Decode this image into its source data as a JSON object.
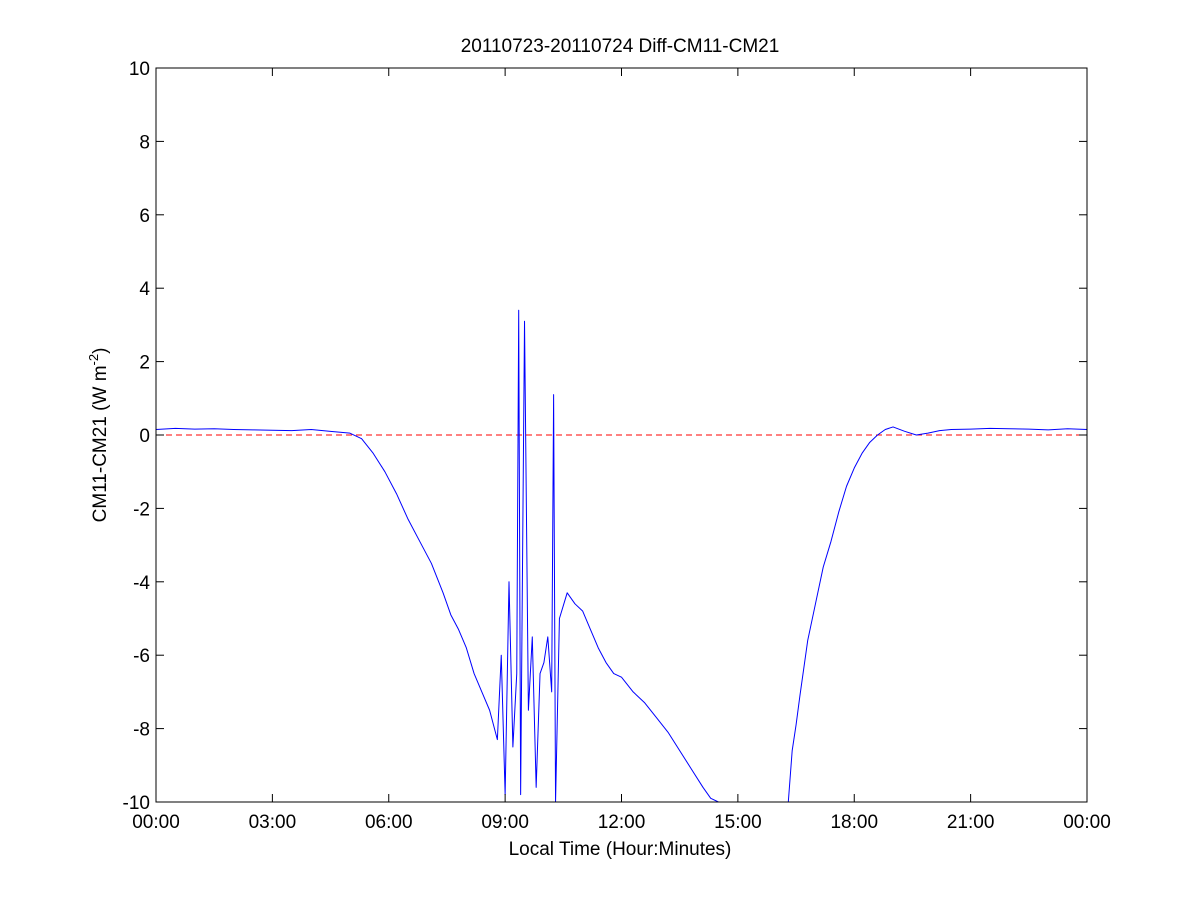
{
  "chart_data": {
    "type": "line",
    "title": "20110723-20110724 Diff-CM11-CM21",
    "xlabel": "Local Time (Hour:Minutes)",
    "ylabel_main": "CM11-CM21 (W m",
    "ylabel_sup": "-2",
    "ylabel_close": ")",
    "x_unit": "hours since 00:00 local time",
    "xlim": [
      0,
      24
    ],
    "ylim": [
      -10,
      10
    ],
    "xticks": [
      0,
      3,
      6,
      9,
      12,
      15,
      18,
      21,
      24
    ],
    "xtick_labels": [
      "00:00",
      "03:00",
      "06:00",
      "09:00",
      "12:00",
      "15:00",
      "18:00",
      "21:00",
      "00:00"
    ],
    "yticks": [
      -10,
      -8,
      -6,
      -4,
      -2,
      0,
      2,
      4,
      6,
      8,
      10
    ],
    "ytick_labels": [
      "-10",
      "-8",
      "-6",
      "-4",
      "-2",
      "0",
      "2",
      "4",
      "6",
      "8",
      "10"
    ],
    "grid": false,
    "reference_line": {
      "y": 0,
      "style": "dashed",
      "color": "#ff0000"
    },
    "series": [
      {
        "color": "#0000ff",
        "x": [
          0,
          0.5,
          1.0,
          1.5,
          2.0,
          2.5,
          3.0,
          3.5,
          4.0,
          4.5,
          5.0,
          5.3,
          5.6,
          5.9,
          6.2,
          6.5,
          6.8,
          7.1,
          7.4,
          7.6,
          7.8,
          8.0,
          8.2,
          8.4,
          8.6,
          8.8,
          8.9,
          9.0,
          9.1,
          9.2,
          9.3,
          9.35,
          9.4,
          9.5,
          9.6,
          9.7,
          9.8,
          9.9,
          10.0,
          10.1,
          10.2,
          10.25,
          10.3,
          10.4,
          10.6,
          10.8,
          11.0,
          11.2,
          11.4,
          11.6,
          11.8,
          12.0,
          12.3,
          12.6,
          12.9,
          13.2,
          13.5,
          13.8,
          14.1,
          14.3,
          14.5,
          14.8,
          15.2,
          15.6,
          16.0,
          16.3,
          16.4,
          16.5,
          16.6,
          16.8,
          17.0,
          17.2,
          17.4,
          17.6,
          17.8,
          18.0,
          18.2,
          18.4,
          18.6,
          18.8,
          19.0,
          19.3,
          19.6,
          19.9,
          20.2,
          20.5,
          21.0,
          21.5,
          22.0,
          22.5,
          23.0,
          23.5,
          24.0
        ],
        "y": [
          0.15,
          0.18,
          0.16,
          0.17,
          0.15,
          0.14,
          0.13,
          0.12,
          0.15,
          0.1,
          0.05,
          -0.1,
          -0.5,
          -1.0,
          -1.6,
          -2.3,
          -2.9,
          -3.5,
          -4.3,
          -4.9,
          -5.3,
          -5.8,
          -6.5,
          -7.0,
          -7.5,
          -8.3,
          -6.0,
          -9.8,
          -4.0,
          -8.5,
          -6.5,
          3.4,
          -9.8,
          3.1,
          -7.5,
          -5.5,
          -9.6,
          -6.5,
          -6.2,
          -5.5,
          -7.0,
          1.1,
          -10.0,
          -5.0,
          -4.3,
          -4.6,
          -4.8,
          -5.3,
          -5.8,
          -6.2,
          -6.5,
          -6.6,
          -7.0,
          -7.3,
          -7.7,
          -8.1,
          -8.6,
          -9.1,
          -9.6,
          -9.9,
          -10.0,
          -10.0,
          -10.0,
          -10.0,
          -10.0,
          -10.0,
          -8.6,
          -7.9,
          -7.1,
          -5.6,
          -4.6,
          -3.6,
          -2.9,
          -2.1,
          -1.4,
          -0.9,
          -0.5,
          -0.2,
          0.0,
          0.15,
          0.22,
          0.1,
          0.0,
          0.05,
          0.12,
          0.15,
          0.16,
          0.18,
          0.17,
          0.16,
          0.14,
          0.17,
          0.15
        ]
      }
    ]
  }
}
